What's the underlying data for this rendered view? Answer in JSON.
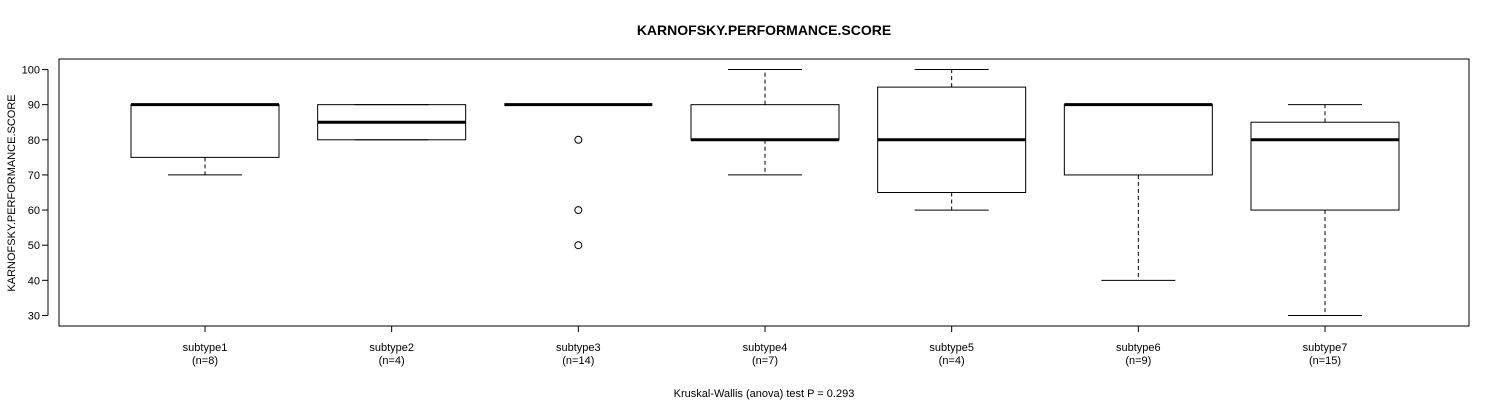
{
  "chart_data": {
    "type": "boxplot",
    "title": "KARNOFSKY.PERFORMANCE.SCORE",
    "ylabel": "KARNOFSKY.PERFORMANCE.SCORE",
    "xlabel": "Kruskal-Wallis (anova) test P = 0.293",
    "ylim": [
      27,
      103
    ],
    "yticks": [
      30,
      40,
      50,
      60,
      70,
      80,
      90,
      100
    ],
    "grid": false,
    "groups": [
      {
        "name": "subtype1",
        "n_label": "(n=8)",
        "whisker_low": 70,
        "q1": 75,
        "median": 90,
        "q3": 90,
        "whisker_high": 90,
        "outliers": []
      },
      {
        "name": "subtype2",
        "n_label": "(n=4)",
        "whisker_low": 80,
        "q1": 80,
        "median": 85,
        "q3": 90,
        "whisker_high": 90,
        "outliers": []
      },
      {
        "name": "subtype3",
        "n_label": "(n=14)",
        "whisker_low": 90,
        "q1": 90,
        "median": 90,
        "q3": 90,
        "whisker_high": 90,
        "outliers": [
          80,
          60,
          50
        ]
      },
      {
        "name": "subtype4",
        "n_label": "(n=7)",
        "whisker_low": 70,
        "q1": 80,
        "median": 80,
        "q3": 90,
        "whisker_high": 100,
        "outliers": []
      },
      {
        "name": "subtype5",
        "n_label": "(n=4)",
        "whisker_low": 60,
        "q1": 65,
        "median": 80,
        "q3": 95,
        "whisker_high": 100,
        "outliers": []
      },
      {
        "name": "subtype6",
        "n_label": "(n=9)",
        "whisker_low": 40,
        "q1": 70,
        "median": 90,
        "q3": 90,
        "whisker_high": 90,
        "outliers": []
      },
      {
        "name": "subtype7",
        "n_label": "(n=15)",
        "whisker_low": 30,
        "q1": 60,
        "median": 80,
        "q3": 85,
        "whisker_high": 90,
        "outliers": []
      }
    ]
  }
}
